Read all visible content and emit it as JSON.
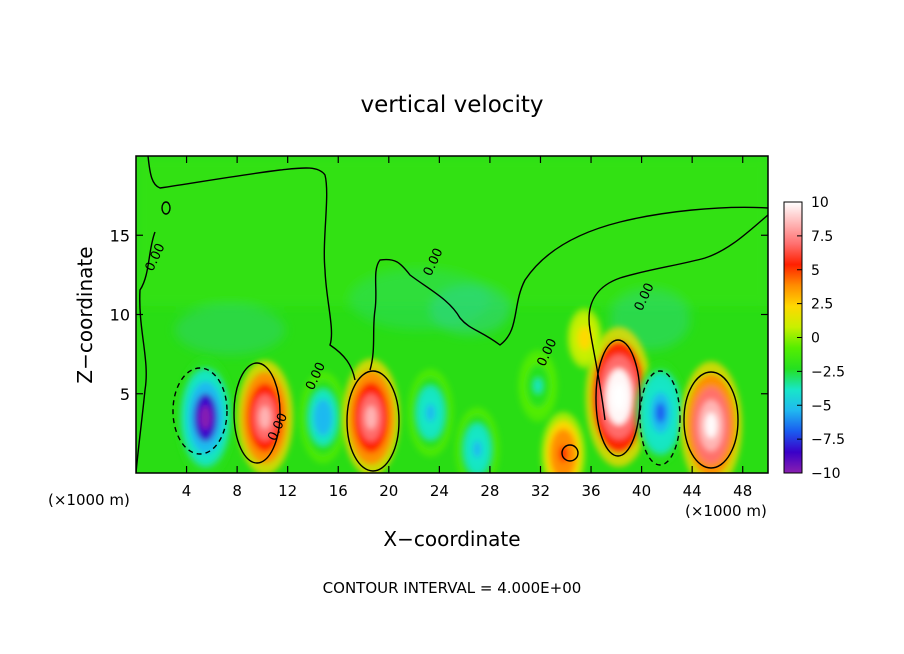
{
  "chart_data": {
    "type": "heatmap",
    "title": "vertical velocity",
    "xlabel": "X−coordinate",
    "ylabel": "Z−coordinate",
    "x_unit_label_left": "(×1000 m)",
    "x_unit_label_right": "(×1000 m)",
    "footer": "CONTOUR INTERVAL = 4.000E+00",
    "xlim": [
      0,
      50
    ],
    "ylim": [
      0,
      20
    ],
    "x_ticks": [
      4,
      8,
      12,
      16,
      20,
      24,
      28,
      32,
      36,
      40,
      44,
      48
    ],
    "y_ticks": [
      5,
      10,
      15
    ],
    "contour_labels": [
      {
        "text": "0.00",
        "x": 1.8,
        "y": 13.5
      },
      {
        "text": "0.00",
        "x": 23.8,
        "y": 13.2
      },
      {
        "text": "0.00",
        "x": 40.5,
        "y": 11.0
      },
      {
        "text": "0.00",
        "x": 14.5,
        "y": 6.0
      },
      {
        "text": "0.00",
        "x": 32.8,
        "y": 7.5
      },
      {
        "text": "0.00",
        "x": 11.5,
        "y": 2.8
      }
    ],
    "colorbar": {
      "min": -10,
      "max": 10,
      "tick_values": [
        10,
        7.5,
        5,
        2.5,
        0,
        -2.5,
        -5,
        -7.5,
        -10
      ],
      "tick_labels": [
        "10",
        "7.5",
        "5",
        "2.5",
        "0",
        "−2.5",
        "−5",
        "−7.5",
        "−10"
      ],
      "colors": [
        "#8a1fb0",
        "#3a00c8",
        "#1a5cf0",
        "#20b8f0",
        "#18e6c8",
        "#25e020",
        "#55ee00",
        "#c8f000",
        "#ffd800",
        "#ff8c00",
        "#ff2000",
        "#ff7070",
        "#ffb8b8",
        "#ffffff"
      ]
    },
    "features": [
      {
        "x": 5.5,
        "z": 3.5,
        "peak": -9.5
      },
      {
        "x": 10.2,
        "z": 3.5,
        "peak": 8.8
      },
      {
        "x": 14.8,
        "z": 3.5,
        "peak": -6.0
      },
      {
        "x": 18.6,
        "z": 3.5,
        "peak": 9.2
      },
      {
        "x": 23.3,
        "z": 3.8,
        "peak": -5.5
      },
      {
        "x": 27.0,
        "z": 1.5,
        "peak": -5.0
      },
      {
        "x": 31.8,
        "z": 5.5,
        "peak": -3.5
      },
      {
        "x": 33.8,
        "z": 1.2,
        "peak": 5.0
      },
      {
        "x": 38.2,
        "z": 4.8,
        "peak": 12.0
      },
      {
        "x": 41.5,
        "z": 3.8,
        "peak": -7.2
      },
      {
        "x": 45.5,
        "z": 3.0,
        "peak": 10.5
      },
      {
        "x": 35.5,
        "z": 8.5,
        "peak": 2.0
      }
    ]
  }
}
